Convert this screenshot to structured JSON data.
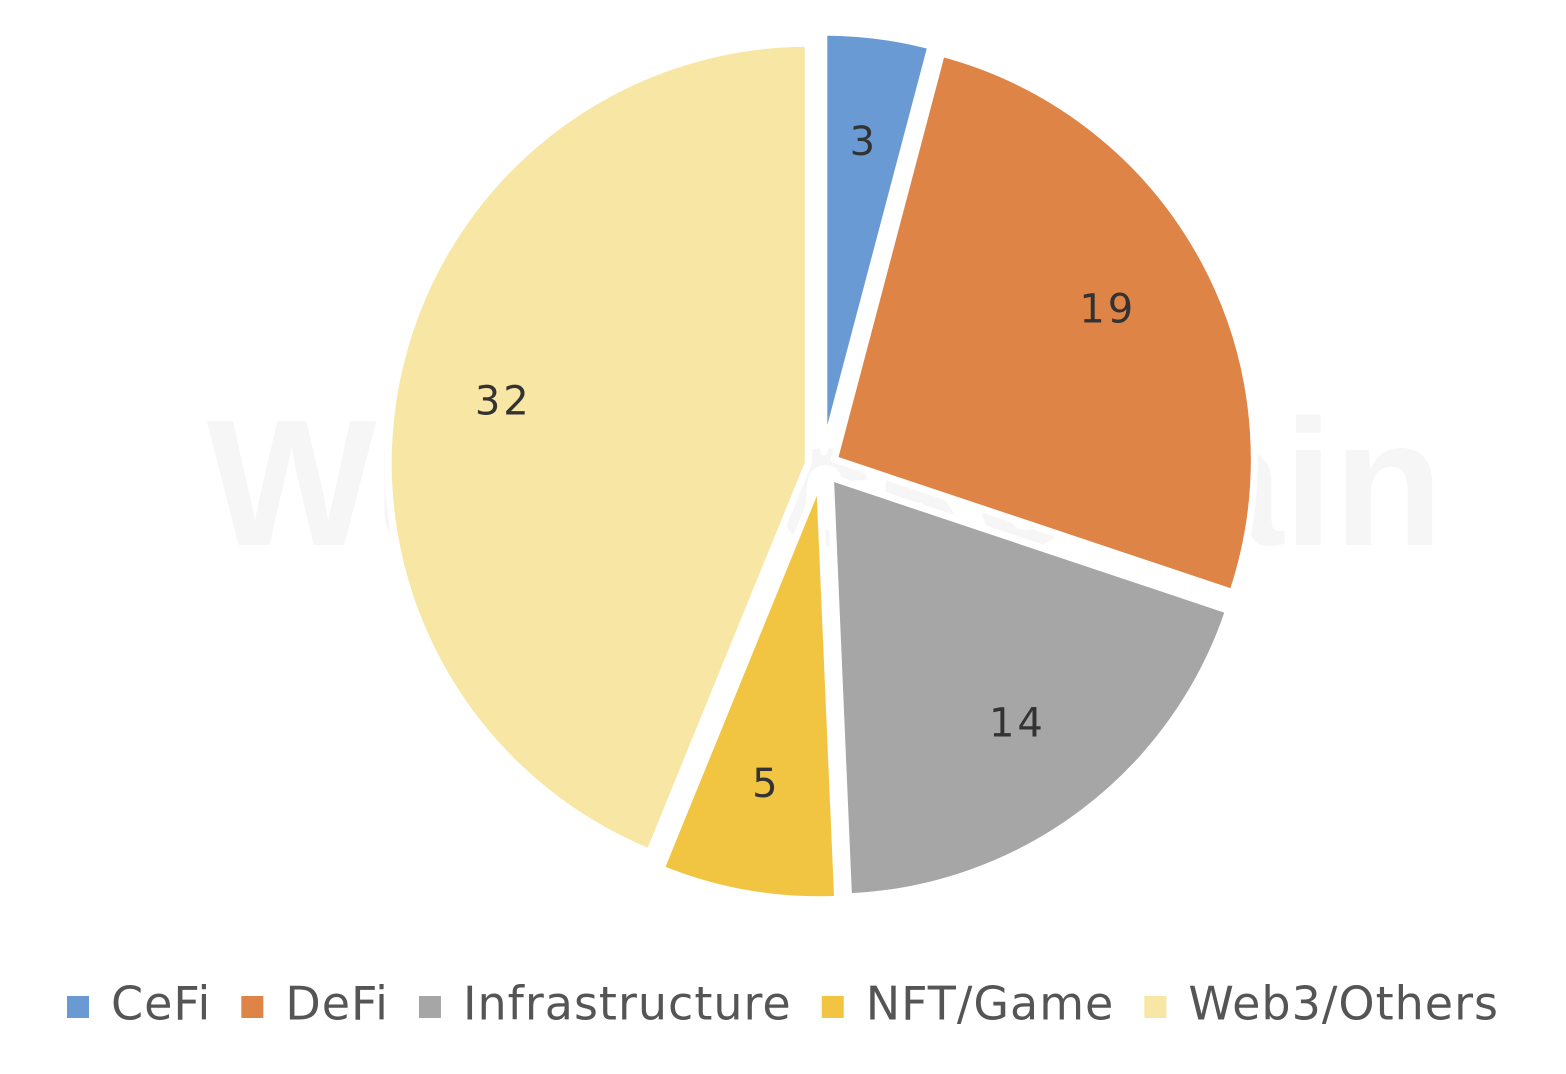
{
  "chart_data": {
    "type": "pie",
    "title": "",
    "categories": [
      "CeFi",
      "DeFi",
      "Infrastructure",
      "NFT/Game",
      "Web3/Others"
    ],
    "values": [
      3,
      19,
      14,
      5,
      32
    ],
    "colors": [
      "#6a9ad3",
      "#dd8446",
      "#a6a6a6",
      "#f1c542",
      "#f8e6a4"
    ],
    "start_angle": "12 o'clock",
    "direction": "clockwise",
    "data_labels": true,
    "legend_position": "bottom"
  },
  "watermark": "WuBlockchain"
}
